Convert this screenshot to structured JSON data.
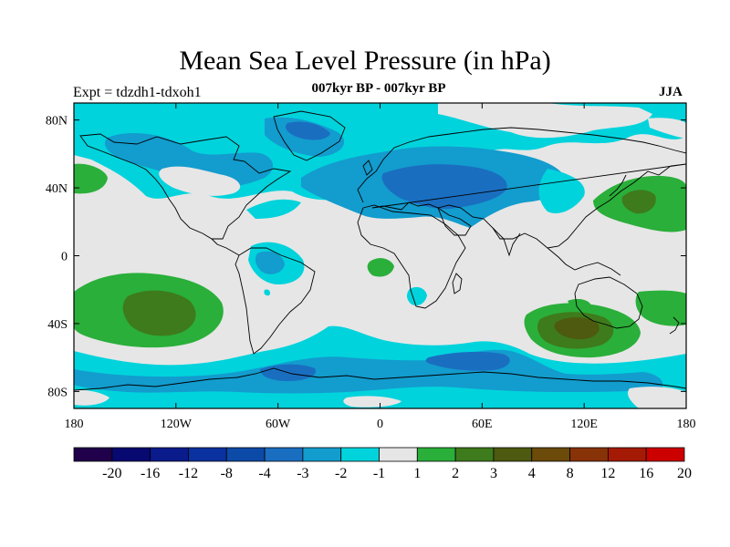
{
  "title": "Mean Sea Level Pressure (in hPa)",
  "left_label": "Expt = tdzdh1-tdxoh1",
  "center_label": "007kyr BP - 007kyr BP",
  "right_label": "JJA",
  "map": {
    "lon_range": [
      -180,
      180
    ],
    "lat_range": [
      -90,
      90
    ],
    "x_ticks": [
      {
        "value": -180,
        "label": "180"
      },
      {
        "value": -120,
        "label": "120W"
      },
      {
        "value": -60,
        "label": "60W"
      },
      {
        "value": 0,
        "label": "0"
      },
      {
        "value": 60,
        "label": "60E"
      },
      {
        "value": 120,
        "label": "120E"
      },
      {
        "value": 180,
        "label": "180"
      }
    ],
    "y_ticks": [
      {
        "value": 80,
        "label": "80N"
      },
      {
        "value": 40,
        "label": "40N"
      },
      {
        "value": 0,
        "label": "0"
      },
      {
        "value": -40,
        "label": "40S"
      },
      {
        "value": -80,
        "label": "80S"
      }
    ]
  },
  "colorbar": {
    "colors": [
      "#20004a",
      "#070870",
      "#0a1b8c",
      "#0a31a0",
      "#0c4aa8",
      "#1a6ec0",
      "#139cce",
      "#00d3dc",
      "#e6e6e6",
      "#2aaf3a",
      "#3e7b1c",
      "#4d5a10",
      "#6b4a0a",
      "#883208",
      "#a51a05",
      "#cd0000"
    ],
    "labels": [
      "-20",
      "-16",
      "-12",
      "-8",
      "-4",
      "-3",
      "-2",
      "-1",
      "1",
      "2",
      "3",
      "4",
      "8",
      "12",
      "16",
      "20"
    ]
  },
  "colors": {
    "neutral": "#e6e6e6",
    "neg1": "#00d3dc",
    "neg2": "#139cce",
    "neg3": "#1a6ec0",
    "pos1": "#2aaf3a",
    "pos2": "#3e7b1c",
    "pos3": "#4d5a10"
  }
}
